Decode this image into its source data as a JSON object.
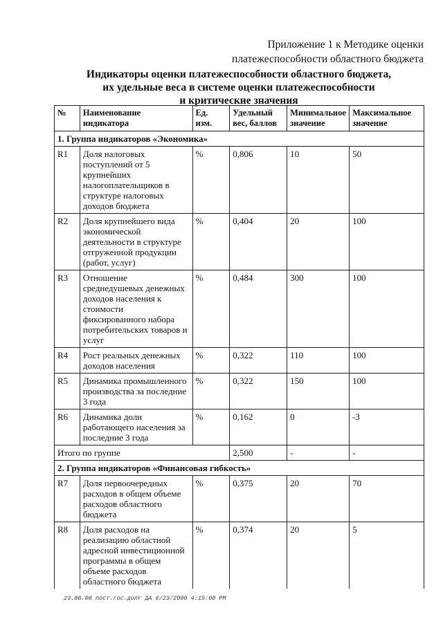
{
  "appendix": "Приложение 1 к Методике оценки\nплатежеспособности областного бюджета",
  "title": "Индикаторы оценки платежеспособности областного бюджета,\nих удельные веса в системе оценки платежеспособности\nи критические значения",
  "table": {
    "headers": [
      "№",
      "Наименование\nиндикатора",
      "Ед.\nизм.",
      "Удельный\nвес, баллов",
      "Минимальное\nзначение",
      "Максимальное\nзначение"
    ],
    "group1": "1. Группа индикаторов «Экономика»",
    "rows1": [
      [
        "R1",
        "Доля налоговых\nпоступлений от 5\nкрупнейших\nналогоплательщиков в\nструктуре налоговых\nдоходов бюджета",
        "%",
        "0,806",
        "10",
        "50"
      ],
      [
        "R2",
        "Доля крупнейшего вида\nэкономической\nдеятельности в структуре\nотгруженной продукции\n(работ, услуг)",
        "%",
        "0,404",
        "20",
        "100"
      ],
      [
        "R3",
        "Отношение\nсреднедушевых денежных\nдоходов населения к\nстоимости\nфиксированного набора\nпотребительских товаров и\nуслуг",
        "%",
        "0,484",
        "300",
        "100"
      ],
      [
        "R4",
        "Рост реальных денежных\nдоходов населения",
        "%",
        "0,322",
        "110",
        "100"
      ],
      [
        "R5",
        "Динамика промышленного\nпроизводства за последние\n3 года",
        "%",
        "0,322",
        "150",
        "100"
      ],
      [
        "R6",
        "Динамика доли\nработающего населения за\nпоследние 3 года",
        "%",
        "0,162",
        "0",
        "-3"
      ]
    ],
    "total": [
      "Итого по группе",
      "2,500",
      "-",
      "-"
    ],
    "group2": "2. Группа индикаторов «Финансовая гибкость»",
    "rows2": [
      [
        "R7",
        "Доля первоочередных\nрасходов в общем объеме\nрасходов областного\nбюджета",
        "%",
        "0,375",
        "20",
        "70"
      ],
      [
        "R8",
        "Доля расходов на\nреализацию областной\nадресной инвестиционной\nпрограммы в общем\nобъеме расходов\nобластного бюджета",
        "%",
        "0,374",
        "20",
        "5"
      ]
    ]
  },
  "footer": "23.06.08  пост.гос.долг ДА 6/23/2008 4:15:00 PM"
}
